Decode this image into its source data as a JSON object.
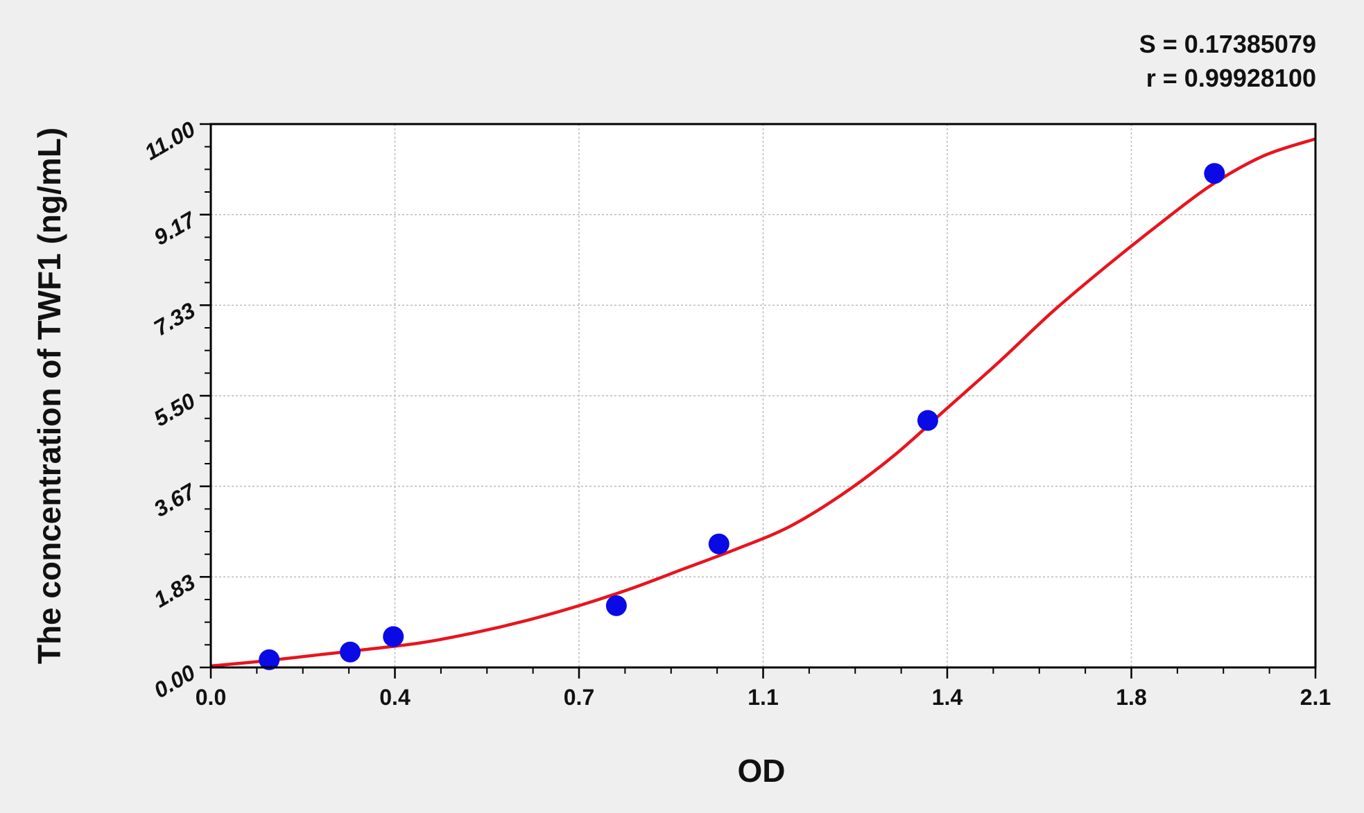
{
  "chart_data": {
    "type": "scatter",
    "title": "",
    "xlabel": "OD",
    "ylabel": "The concentration of TWF1 (ng/mL)",
    "xlim": [
      0,
      2.1
    ],
    "ylim": [
      0,
      11
    ],
    "x_tick_labels": [
      "0.0",
      "0.4",
      "0.7",
      "1.1",
      "1.4",
      "1.8",
      "2.1"
    ],
    "y_tick_labels": [
      "0.00",
      "1.83",
      "3.67",
      "5.50",
      "7.33",
      "9.17",
      "11.00"
    ],
    "grid": true,
    "annotations": [
      "S = 0.17385079",
      "r = 0.99928100"
    ],
    "series": [
      {
        "type": "scatter",
        "color": "#0a0ae6",
        "x": [
          0.111,
          0.265,
          0.347,
          0.771,
          0.966,
          1.363,
          1.908
        ],
        "y": [
          0.156,
          0.3125,
          0.625,
          1.25,
          2.5,
          5.0,
          10.0
        ]
      },
      {
        "type": "line",
        "color": "#e8141e",
        "x": [
          0.0,
          0.1,
          0.2,
          0.3,
          0.4,
          0.5,
          0.6,
          0.7,
          0.8,
          0.9,
          1.0,
          1.1,
          1.2,
          1.3,
          1.4,
          1.5,
          1.6,
          1.7,
          1.8,
          1.9,
          2.0,
          2.1
        ],
        "y": [
          0.03,
          0.13,
          0.25,
          0.37,
          0.5,
          0.7,
          0.95,
          1.25,
          1.6,
          2.0,
          2.4,
          2.85,
          3.5,
          4.3,
          5.25,
          6.2,
          7.2,
          8.1,
          8.95,
          9.75,
          10.35,
          10.7
        ]
      }
    ]
  }
}
